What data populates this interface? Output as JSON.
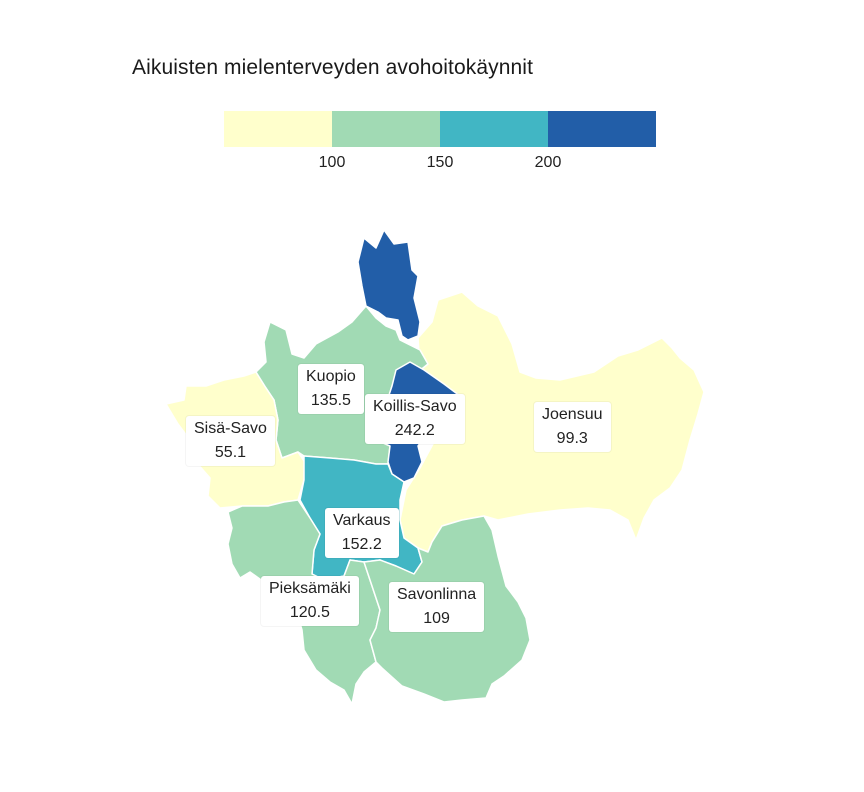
{
  "title": "Aikuisten mielenterveyden avohoitokäynnit",
  "legend": {
    "colors": [
      "#ffffcc",
      "#a1dab4",
      "#41b6c4",
      "#225ea8"
    ],
    "breaks": [
      "100",
      "150",
      "200"
    ]
  },
  "regions": [
    {
      "name": "Kuopio",
      "value": "135.5",
      "color": "#a1dab4"
    },
    {
      "name": "Koillis-Savo",
      "value": "242.2",
      "color": "#225ea8"
    },
    {
      "name": "Joensuu",
      "value": "99.3",
      "color": "#ffffcc"
    },
    {
      "name": "Sisä-Savo",
      "value": "55.1",
      "color": "#ffffcc"
    },
    {
      "name": "Varkaus",
      "value": "152.2",
      "color": "#41b6c4"
    },
    {
      "name": "Pieksämäki",
      "value": "120.5",
      "color": "#a1dab4"
    },
    {
      "name": "Savonlinna",
      "value": "109",
      "color": "#a1dab4"
    }
  ]
}
